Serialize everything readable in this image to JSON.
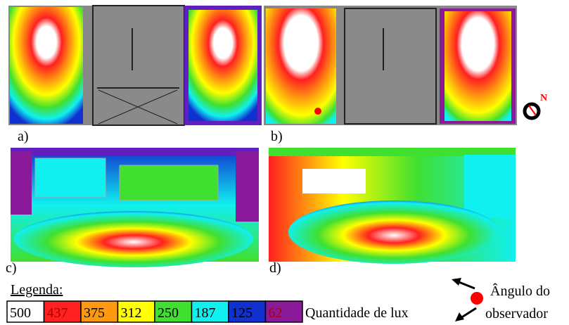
{
  "panels": [
    {
      "label": "a)"
    },
    {
      "label": "b)"
    },
    {
      "label": "c)"
    },
    {
      "label": "d)"
    }
  ],
  "compass": "N",
  "legend": {
    "title": "Legenda:",
    "unit_label": "Quantidade de lux",
    "items": [
      {
        "value": 500,
        "color": "#ffffff"
      },
      {
        "value": 437,
        "color": "#ff2020"
      },
      {
        "value": 375,
        "color": "#ff9a10"
      },
      {
        "value": 312,
        "color": "#ffff00"
      },
      {
        "value": 250,
        "color": "#40e030"
      },
      {
        "value": 187,
        "color": "#10f0f0"
      },
      {
        "value": 125,
        "color": "#1030d0"
      },
      {
        "value": 62,
        "color": "#8a1a9a"
      }
    ]
  },
  "observer_label": [
    "Ângulo do",
    "observador"
  ]
}
